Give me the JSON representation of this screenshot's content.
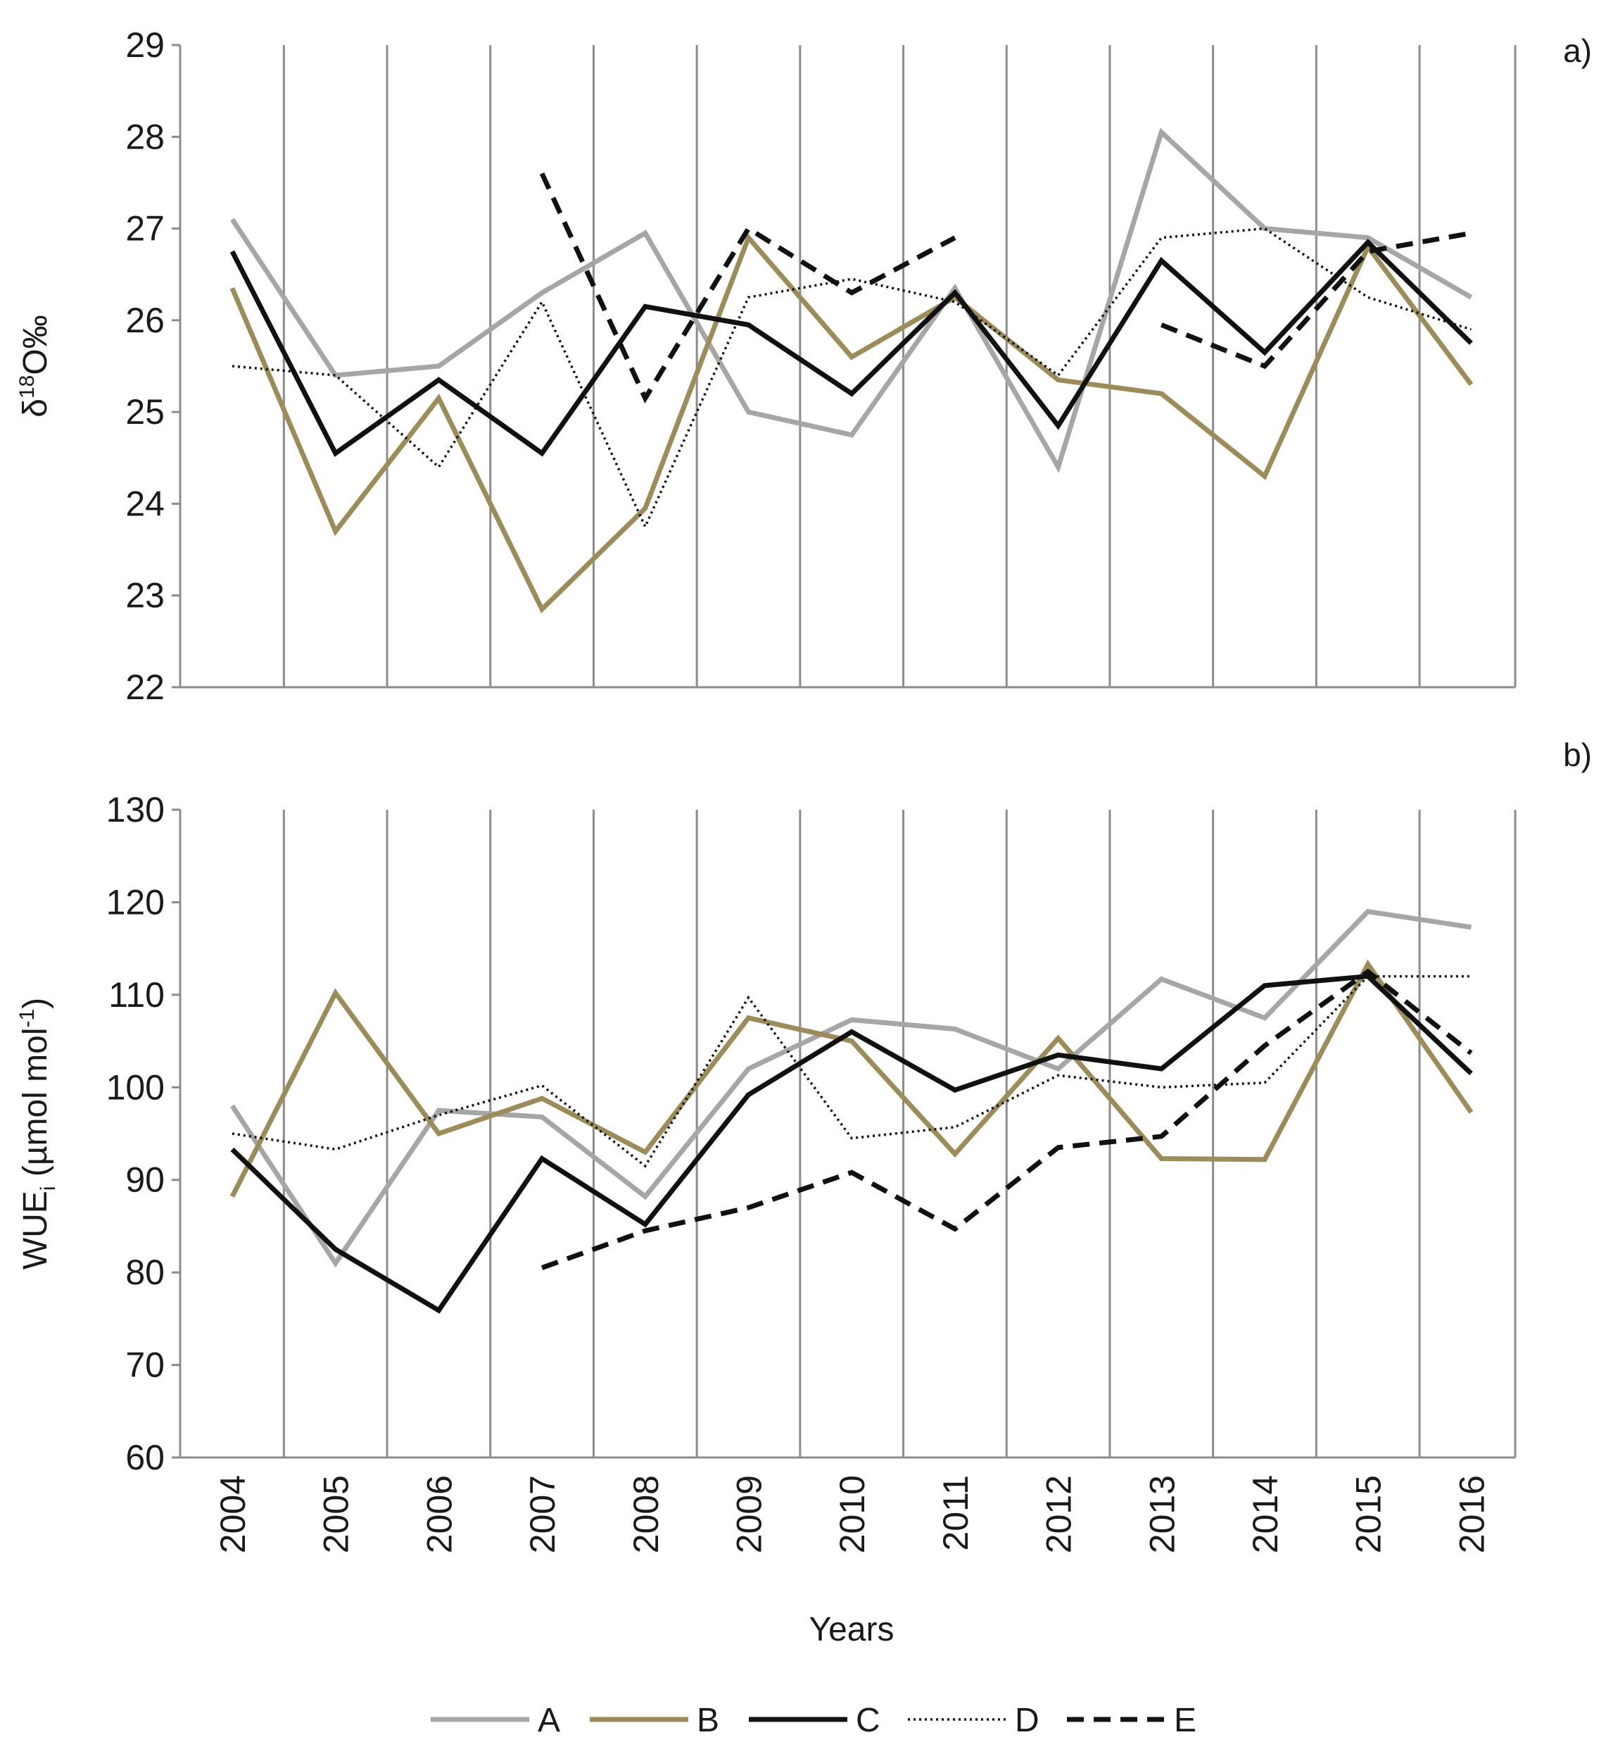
{
  "figure": {
    "xlabel": "Years",
    "years": [
      "2004",
      "2005",
      "2006",
      "2007",
      "2008",
      "2009",
      "2010",
      "2011",
      "2012",
      "2013",
      "2014",
      "2015",
      "2016"
    ],
    "legend": [
      {
        "key": "A",
        "label": "A"
      },
      {
        "key": "B",
        "label": "B"
      },
      {
        "key": "C",
        "label": "C"
      },
      {
        "key": "D",
        "label": "D"
      },
      {
        "key": "E",
        "label": "E"
      }
    ]
  },
  "styles": {
    "A": {
      "color": "#a6a6a6",
      "dash": "solid"
    },
    "B": {
      "color": "#9b8c5a",
      "dash": "solid"
    },
    "C": {
      "color": "#111111",
      "dash": "solid"
    },
    "D": {
      "color": "#111111",
      "dash": "dotted"
    },
    "E": {
      "color": "#111111",
      "dash": "dashed"
    }
  },
  "chart_data": [
    {
      "type": "line",
      "panel_label": "a)",
      "ylabel": "δ18O‰",
      "ylabel_parts": {
        "prefix": "δ",
        "sup": "18",
        "suffix": "O‰"
      },
      "ylim": [
        22,
        29
      ],
      "yticks": [
        22,
        23,
        24,
        25,
        26,
        27,
        28,
        29
      ],
      "categories": [
        "2004",
        "2005",
        "2006",
        "2007",
        "2008",
        "2009",
        "2010",
        "2011",
        "2012",
        "2013",
        "2014",
        "2015",
        "2016"
      ],
      "series": [
        {
          "name": "A",
          "values": [
            27.1,
            25.4,
            25.5,
            26.3,
            26.95,
            25.0,
            24.75,
            26.35,
            24.4,
            28.05,
            27.0,
            26.9,
            26.25
          ]
        },
        {
          "name": "B",
          "values": [
            26.35,
            23.7,
            25.15,
            22.85,
            23.95,
            26.9,
            25.6,
            26.25,
            25.35,
            25.2,
            24.3,
            26.8,
            25.3
          ]
        },
        {
          "name": "C",
          "values": [
            26.75,
            24.55,
            25.35,
            24.55,
            26.15,
            25.95,
            25.2,
            26.3,
            24.85,
            26.65,
            25.65,
            26.85,
            25.75
          ]
        },
        {
          "name": "D",
          "values": [
            25.5,
            25.4,
            24.4,
            26.2,
            23.75,
            26.25,
            26.45,
            26.2,
            25.4,
            26.9,
            27.0,
            26.25,
            25.9
          ]
        },
        {
          "name": "E",
          "values": [
            null,
            null,
            null,
            27.6,
            25.15,
            27.0,
            26.3,
            26.9,
            null,
            25.95,
            25.5,
            26.75,
            26.95
          ]
        }
      ]
    },
    {
      "type": "line",
      "panel_label": "b)",
      "ylabel": "WUEi (µmol mol-1)",
      "ylabel_parts": {
        "prefix": "WUE",
        "sub": "i",
        "middle": " (µmol mol",
        "sup": "-1",
        "suffix": ")"
      },
      "ylim": [
        60,
        130
      ],
      "yticks": [
        60,
        70,
        80,
        90,
        100,
        110,
        120,
        130
      ],
      "categories": [
        "2004",
        "2005",
        "2006",
        "2007",
        "2008",
        "2009",
        "2010",
        "2011",
        "2012",
        "2013",
        "2014",
        "2015",
        "2016"
      ],
      "series": [
        {
          "name": "A",
          "values": [
            98.0,
            81.0,
            97.5,
            96.8,
            88.2,
            102.0,
            107.3,
            106.3,
            102.0,
            111.7,
            107.5,
            119.0,
            117.3
          ]
        },
        {
          "name": "B",
          "values": [
            88.2,
            110.2,
            95.0,
            98.8,
            93.0,
            107.5,
            105.0,
            92.8,
            105.3,
            92.3,
            92.2,
            113.3,
            97.3
          ]
        },
        {
          "name": "C",
          "values": [
            93.3,
            82.5,
            75.9,
            92.3,
            85.2,
            99.2,
            106.0,
            99.7,
            103.5,
            102.0,
            111.0,
            112.0,
            101.5
          ]
        },
        {
          "name": "D",
          "values": [
            95.0,
            93.3,
            97.0,
            100.2,
            91.5,
            109.7,
            94.5,
            95.7,
            101.3,
            100.0,
            100.5,
            112.0,
            112.0
          ]
        },
        {
          "name": "E",
          "values": [
            null,
            null,
            null,
            80.5,
            84.5,
            87.0,
            90.8,
            84.7,
            93.5,
            94.7,
            104.5,
            112.5,
            103.7
          ]
        }
      ]
    }
  ]
}
